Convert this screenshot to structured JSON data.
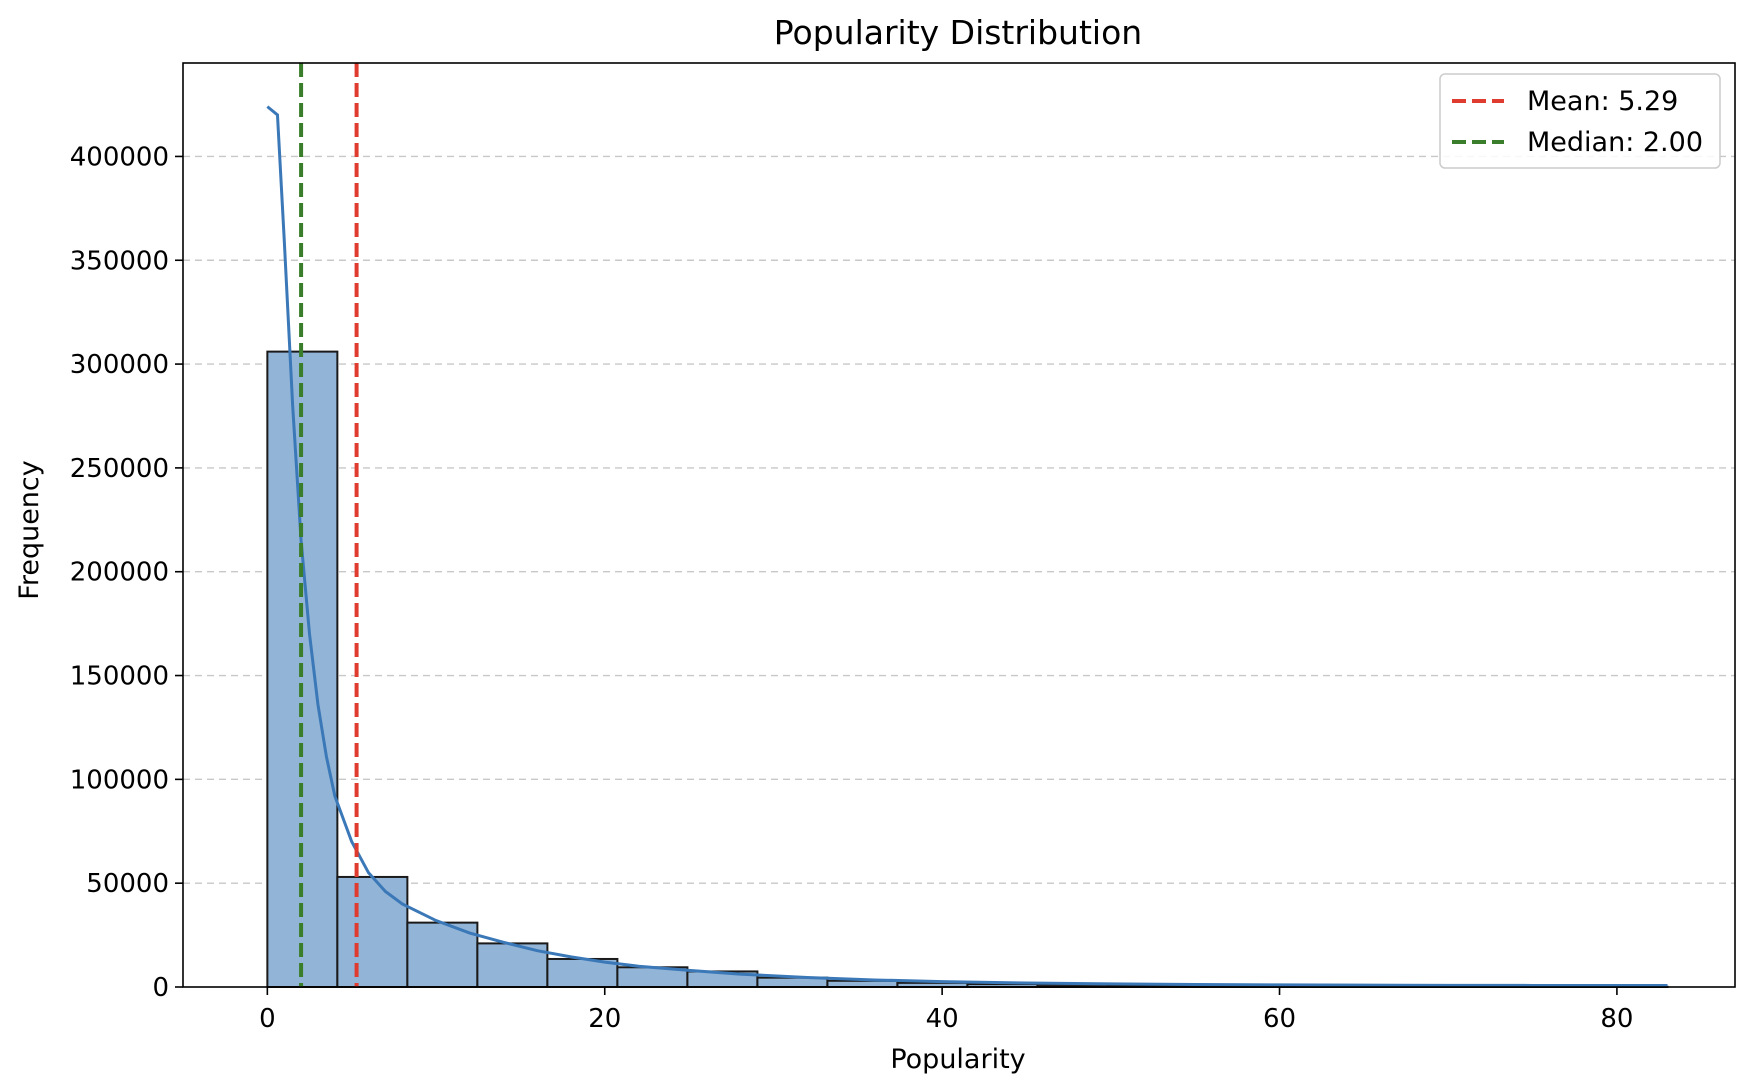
{
  "chart_data": {
    "type": "histogram",
    "title": "Popularity Distribution",
    "xlabel": "Popularity",
    "ylabel": "Frequency",
    "xlim": [
      -5,
      87
    ],
    "ylim": [
      0,
      445000
    ],
    "xticks": [
      0,
      20,
      40,
      60,
      80
    ],
    "xtick_labels": [
      "0",
      "20",
      "40",
      "60",
      "80"
    ],
    "yticks": [
      0,
      50000,
      100000,
      150000,
      200000,
      250000,
      300000,
      350000,
      400000
    ],
    "ytick_labels": [
      "0",
      "50000",
      "100000",
      "150000",
      "200000",
      "250000",
      "300000",
      "350000",
      "400000"
    ],
    "grid": "y-dashed",
    "bin_edges": [
      0,
      4.15,
      8.3,
      12.45,
      16.6,
      20.75,
      24.9,
      29.05,
      33.2,
      37.35,
      41.5,
      45.65,
      49.8,
      53.95,
      58.1,
      62.25,
      66.4,
      70.55,
      74.7,
      78.85,
      83
    ],
    "counts": [
      306000,
      53000,
      31000,
      21000,
      13500,
      9500,
      7500,
      4500,
      3000,
      2000,
      1400,
      1000,
      700,
      500,
      400,
      300,
      200,
      150,
      120,
      100
    ],
    "bar_color": "#92b4d6",
    "bar_edge_color": "#1a1a1a",
    "kde": {
      "color": "#3b78b8",
      "x": [
        0,
        0.3,
        0.6,
        1,
        1.5,
        2,
        2.5,
        3,
        3.5,
        4,
        5,
        6,
        7,
        8,
        10,
        12,
        14,
        16,
        18,
        20,
        22,
        25,
        28,
        32,
        36,
        40,
        45,
        50,
        55,
        60,
        65,
        70,
        75,
        80,
        83
      ],
      "y": [
        424000,
        422000,
        420000,
        360000,
        280000,
        215000,
        170000,
        136000,
        111000,
        92000,
        70000,
        55000,
        46000,
        40000,
        32000,
        26000,
        21500,
        17500,
        14500,
        12000,
        10000,
        8000,
        6200,
        4600,
        3400,
        2600,
        1900,
        1500,
        1200,
        1000,
        900,
        800,
        750,
        700,
        700
      ]
    },
    "reference_lines": [
      {
        "label": "Mean: 5.29",
        "value": 5.29,
        "color": "#e03b2f",
        "style": "dashed"
      },
      {
        "label": "Median: 2.00",
        "value": 2.0,
        "color": "#3a7d2a",
        "style": "dashed"
      }
    ],
    "legend_position": "top-right"
  }
}
